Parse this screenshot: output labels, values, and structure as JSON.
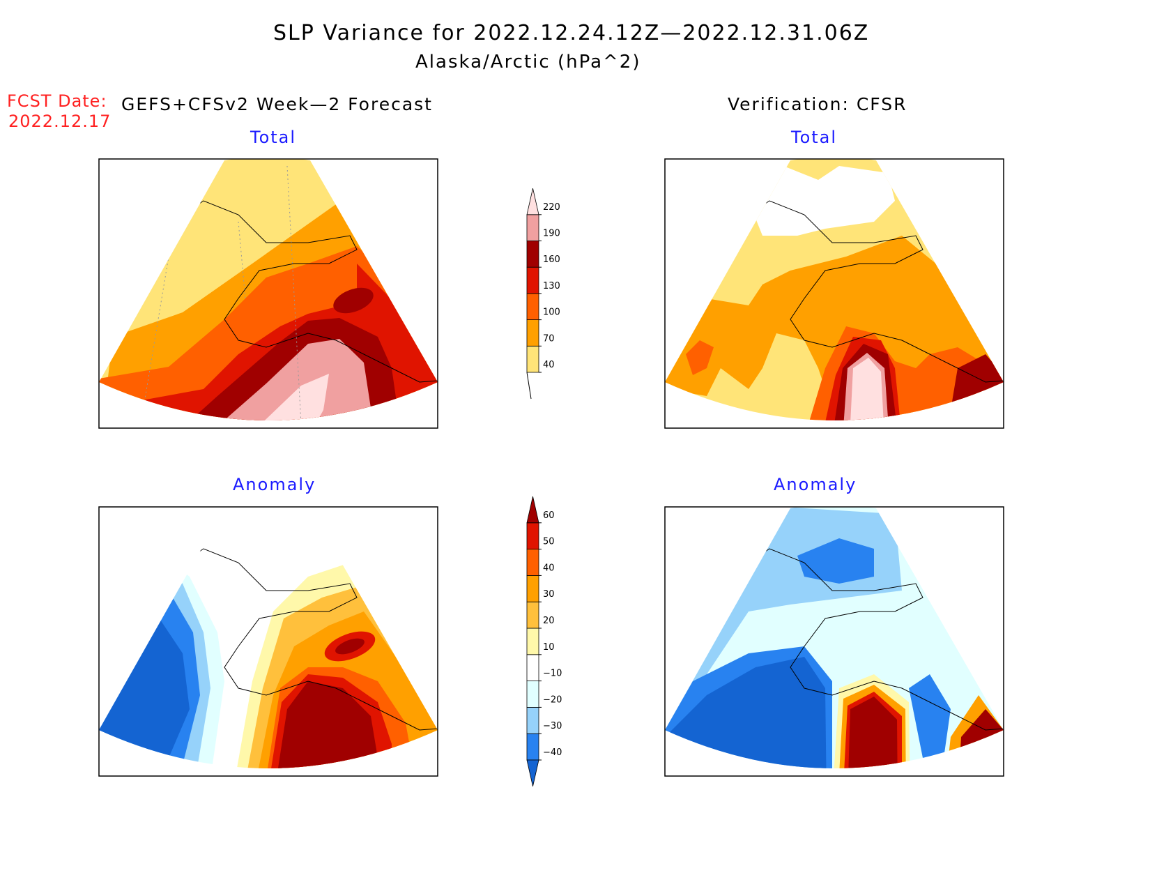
{
  "title": "SLP Variance for 2022.12.24.12Z—2022.12.31.06Z",
  "subtitle": "Alaska/Arctic (hPa^2)",
  "fcst_date_label": "FCST Date:",
  "fcst_date": "2022.12.17",
  "left_header": "GEFS+CFSv2 Week—2 Forecast",
  "right_header": "Verification: CFSR",
  "chart_data": [
    {
      "type": "heatmap",
      "panel": "forecast-total",
      "title": "Total"
    },
    {
      "type": "heatmap",
      "panel": "verification-total",
      "title": "Total"
    },
    {
      "type": "heatmap",
      "panel": "forecast-anomaly",
      "title": "Anomaly"
    },
    {
      "type": "heatmap",
      "panel": "verification-anomaly",
      "title": "Anomaly"
    },
    {
      "type": "colorbar",
      "name": "total-colorbar",
      "levels": [
        "40",
        "70",
        "100",
        "130",
        "160",
        "190",
        "220"
      ],
      "colors": [
        "#ffe478",
        "#ffa000",
        "#ff6000",
        "#e01400",
        "#a00000",
        "#f0a0a0",
        "#ffe0e0"
      ]
    },
    {
      "type": "colorbar",
      "name": "anomaly-colorbar",
      "levels": [
        "−40",
        "−30",
        "−20",
        "−10",
        "10",
        "20",
        "30",
        "40",
        "50",
        "60"
      ],
      "colors": [
        "#1464d2",
        "#2882f0",
        "#96d2fa",
        "#e1ffff",
        "#ffffff",
        "#fff8aa",
        "#ffc03c",
        "#ffa000",
        "#ff6000",
        "#e01400",
        "#a00000"
      ]
    }
  ]
}
